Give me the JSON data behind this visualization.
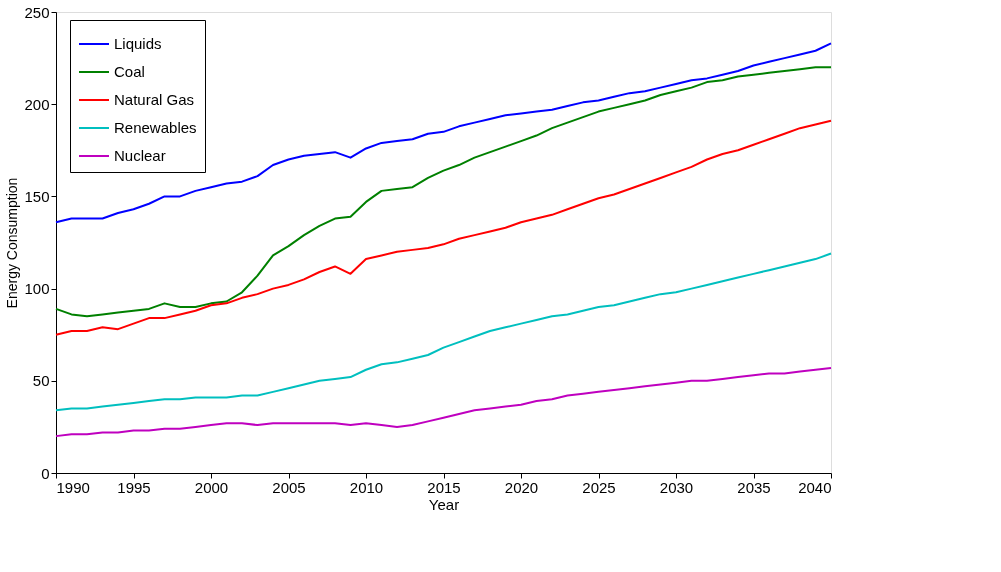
{
  "chart_data": {
    "type": "line",
    "xlabel": "Year",
    "ylabel": "Energy Consumption",
    "x": [
      1990,
      1991,
      1992,
      1993,
      1994,
      1995,
      1996,
      1997,
      1998,
      1999,
      2000,
      2001,
      2002,
      2003,
      2004,
      2005,
      2006,
      2007,
      2008,
      2009,
      2010,
      2011,
      2012,
      2013,
      2014,
      2015,
      2016,
      2017,
      2018,
      2019,
      2020,
      2021,
      2022,
      2023,
      2024,
      2025,
      2026,
      2027,
      2028,
      2029,
      2030,
      2031,
      2032,
      2033,
      2034,
      2035,
      2036,
      2037,
      2038,
      2039,
      2040
    ],
    "series": [
      {
        "name": "Liquids",
        "color": "#0000ff",
        "values": [
          136,
          138,
          138,
          138,
          141,
          143,
          146,
          150,
          150,
          153,
          155,
          157,
          158,
          161,
          167,
          170,
          172,
          173,
          174,
          171,
          176,
          179,
          180,
          181,
          184,
          185,
          188,
          190,
          192,
          194,
          195,
          196,
          197,
          199,
          201,
          202,
          204,
          206,
          207,
          209,
          211,
          213,
          214,
          216,
          218,
          221,
          223,
          225,
          227,
          229,
          233
        ]
      },
      {
        "name": "Coal",
        "color": "#008000",
        "values": [
          89,
          86,
          85,
          86,
          87,
          88,
          89,
          92,
          90,
          90,
          92,
          93,
          98,
          107,
          118,
          123,
          129,
          134,
          138,
          139,
          147,
          153,
          154,
          155,
          160,
          164,
          167,
          171,
          174,
          177,
          180,
          183,
          187,
          190,
          193,
          196,
          198,
          200,
          202,
          205,
          207,
          209,
          212,
          213,
          215,
          216,
          217,
          218,
          219,
          220,
          220
        ]
      },
      {
        "name": "Natural Gas",
        "color": "#ff0000",
        "values": [
          75,
          77,
          77,
          79,
          78,
          81,
          84,
          84,
          86,
          88,
          91,
          92,
          95,
          97,
          100,
          102,
          105,
          109,
          112,
          108,
          116,
          118,
          120,
          121,
          122,
          124,
          127,
          129,
          131,
          133,
          136,
          138,
          140,
          143,
          146,
          149,
          151,
          154,
          157,
          160,
          163,
          166,
          170,
          173,
          175,
          178,
          181,
          184,
          187,
          189,
          191
        ]
      },
      {
        "name": "Renewables",
        "color": "#00bfbf",
        "values": [
          34,
          35,
          35,
          36,
          37,
          38,
          39,
          40,
          40,
          41,
          41,
          41,
          42,
          42,
          44,
          46,
          48,
          50,
          51,
          52,
          56,
          59,
          60,
          62,
          64,
          68,
          71,
          74,
          77,
          79,
          81,
          83,
          85,
          86,
          88,
          90,
          91,
          93,
          95,
          97,
          98,
          100,
          102,
          104,
          106,
          108,
          110,
          112,
          114,
          116,
          119
        ]
      },
      {
        "name": "Nuclear",
        "color": "#bf00bf",
        "values": [
          20,
          21,
          21,
          22,
          22,
          23,
          23,
          24,
          24,
          25,
          26,
          27,
          27,
          26,
          27,
          27,
          27,
          27,
          27,
          26,
          27,
          26,
          25,
          26,
          28,
          30,
          32,
          34,
          35,
          36,
          37,
          39,
          40,
          42,
          43,
          44,
          45,
          46,
          47,
          48,
          49,
          50,
          50,
          51,
          52,
          53,
          54,
          54,
          55,
          56,
          57
        ]
      }
    ],
    "xlim": [
      1990,
      2040
    ],
    "xticks": [
      1990,
      1995,
      2000,
      2005,
      2010,
      2015,
      2020,
      2025,
      2030,
      2035,
      2040
    ],
    "ylim": [
      0,
      250
    ],
    "yticks": [
      0,
      50,
      100,
      150,
      200,
      250
    ],
    "legend": "top left",
    "grid": false,
    "line_style": "solid",
    "marker": "none"
  }
}
